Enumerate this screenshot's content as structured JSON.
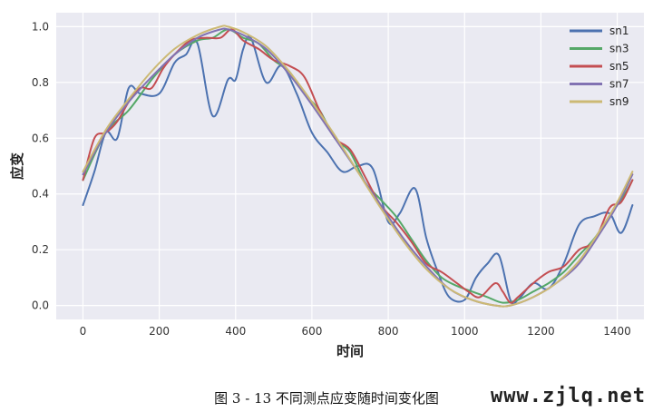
{
  "chart_data": {
    "type": "line",
    "xlabel": "时间",
    "ylabel": "应变",
    "xlim": [
      -70,
      1470
    ],
    "ylim": [
      -0.05,
      1.05
    ],
    "xticks": [
      0,
      200,
      400,
      600,
      800,
      1000,
      1200,
      1400
    ],
    "yticks": [
      0.0,
      0.2,
      0.4,
      0.6,
      0.8,
      1.0
    ],
    "grid": true,
    "legend_position": "top-right",
    "series": [
      {
        "name": "sn1",
        "color": "#4c72b0",
        "x": [
          0,
          30,
          60,
          90,
          120,
          150,
          200,
          240,
          270,
          300,
          340,
          380,
          400,
          420,
          440,
          480,
          520,
          560,
          600,
          640,
          680,
          720,
          760,
          800,
          830,
          870,
          900,
          930,
          960,
          1000,
          1030,
          1060,
          1090,
          1120,
          1140,
          1180,
          1220,
          1260,
          1300,
          1340,
          1380,
          1410,
          1440
        ],
        "y": [
          0.36,
          0.48,
          0.62,
          0.6,
          0.78,
          0.76,
          0.76,
          0.87,
          0.9,
          0.94,
          0.68,
          0.81,
          0.81,
          0.92,
          0.96,
          0.8,
          0.86,
          0.76,
          0.62,
          0.55,
          0.48,
          0.5,
          0.49,
          0.3,
          0.33,
          0.42,
          0.24,
          0.12,
          0.03,
          0.02,
          0.1,
          0.15,
          0.18,
          0.02,
          0.02,
          0.08,
          0.06,
          0.15,
          0.29,
          0.32,
          0.33,
          0.26,
          0.36
        ]
      },
      {
        "name": "sn3",
        "color": "#55a868",
        "x": [
          0,
          60,
          120,
          180,
          240,
          300,
          340,
          380,
          420,
          460,
          500,
          540,
          580,
          620,
          660,
          700,
          740,
          780,
          820,
          860,
          900,
          940,
          980,
          1020,
          1060,
          1100,
          1140,
          1180,
          1220,
          1260,
          1300,
          1340,
          1380,
          1420,
          1440
        ],
        "y": [
          0.45,
          0.62,
          0.7,
          0.81,
          0.9,
          0.95,
          0.96,
          0.99,
          0.96,
          0.94,
          0.88,
          0.84,
          0.76,
          0.7,
          0.6,
          0.55,
          0.44,
          0.38,
          0.32,
          0.24,
          0.16,
          0.1,
          0.07,
          0.05,
          0.03,
          0.01,
          0.02,
          0.05,
          0.08,
          0.12,
          0.18,
          0.24,
          0.32,
          0.4,
          0.45
        ]
      },
      {
        "name": "sn5",
        "color": "#c44e52",
        "x": [
          0,
          30,
          60,
          90,
          120,
          150,
          180,
          210,
          240,
          280,
          320,
          360,
          390,
          420,
          460,
          500,
          540,
          580,
          620,
          660,
          700,
          740,
          780,
          820,
          860,
          900,
          940,
          980,
          1010,
          1040,
          1080,
          1100,
          1120,
          1140,
          1180,
          1220,
          1260,
          1300,
          1340,
          1380,
          1410,
          1440
        ],
        "y": [
          0.45,
          0.6,
          0.62,
          0.66,
          0.73,
          0.78,
          0.78,
          0.85,
          0.9,
          0.95,
          0.96,
          0.96,
          0.99,
          0.95,
          0.92,
          0.88,
          0.86,
          0.82,
          0.7,
          0.6,
          0.56,
          0.46,
          0.36,
          0.3,
          0.23,
          0.15,
          0.12,
          0.08,
          0.05,
          0.03,
          0.08,
          0.05,
          0.01,
          0.03,
          0.08,
          0.12,
          0.14,
          0.2,
          0.23,
          0.35,
          0.37,
          0.45
        ]
      },
      {
        "name": "sn7",
        "color": "#8172b2",
        "x": [
          0,
          60,
          120,
          180,
          240,
          300,
          360,
          380,
          420,
          480,
          540,
          600,
          660,
          720,
          780,
          840,
          900,
          960,
          1020,
          1080,
          1120,
          1180,
          1240,
          1300,
          1360,
          1400,
          1440
        ],
        "y": [
          0.47,
          0.62,
          0.73,
          0.82,
          0.9,
          0.96,
          0.99,
          0.99,
          0.97,
          0.92,
          0.83,
          0.72,
          0.6,
          0.48,
          0.36,
          0.24,
          0.14,
          0.06,
          0.02,
          0.0,
          0.0,
          0.03,
          0.08,
          0.15,
          0.27,
          0.36,
          0.47
        ]
      },
      {
        "name": "sn9",
        "color": "#ccb974",
        "x": [
          0,
          60,
          120,
          180,
          240,
          300,
          360,
          380,
          420,
          480,
          540,
          600,
          660,
          720,
          780,
          840,
          900,
          960,
          1020,
          1080,
          1120,
          1180,
          1240,
          1300,
          1360,
          1400,
          1440
        ],
        "y": [
          0.48,
          0.63,
          0.74,
          0.84,
          0.92,
          0.97,
          1.0,
          1.0,
          0.98,
          0.93,
          0.84,
          0.73,
          0.61,
          0.48,
          0.35,
          0.23,
          0.13,
          0.06,
          0.02,
          0.0,
          0.0,
          0.03,
          0.08,
          0.16,
          0.28,
          0.37,
          0.48
        ]
      }
    ]
  },
  "caption": "图 3 - 13 不同测点应变随时间变化图",
  "watermark": "www.zjlq.net"
}
